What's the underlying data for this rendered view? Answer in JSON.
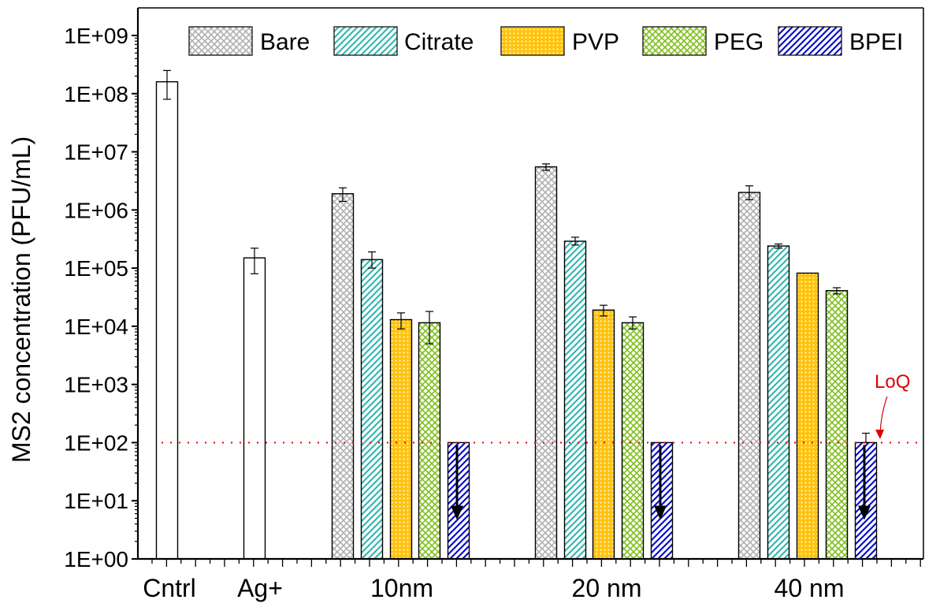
{
  "chart_data": {
    "type": "bar",
    "ylabel": "MS2 concentration (PFU/mL)",
    "xlabel": "",
    "yscale": "log",
    "ylim": [
      1,
      1000000000
    ],
    "yticks": [
      "1E+00",
      "1E+01",
      "1E+02",
      "1E+03",
      "1E+04",
      "1E+05",
      "1E+06",
      "1E+07",
      "1E+08",
      "1E+09"
    ],
    "groups": [
      "Cntrl",
      "Ag+",
      "10nm",
      "20 nm",
      "40 nm"
    ],
    "legend_position": "top",
    "legend": [
      {
        "name": "Bare",
        "pattern": "cross",
        "color": "#b0b0b0"
      },
      {
        "name": "Citrate",
        "pattern": "diag",
        "color": "#35b8b0"
      },
      {
        "name": "PVP",
        "pattern": "dots",
        "color": "#ffc20e"
      },
      {
        "name": "PEG",
        "pattern": "cross",
        "color": "#7fbf1e"
      },
      {
        "name": "BPEI",
        "pattern": "diag",
        "color": "#0a10c8"
      }
    ],
    "bars": [
      {
        "group": "Cntrl",
        "series": "Control",
        "value": 160000000,
        "err_low": 80000000,
        "err_high": 250000000,
        "pattern": "none",
        "color": "#000000"
      },
      {
        "group": "Ag+",
        "series": "Ag+",
        "value": 150000,
        "err_low": 80000,
        "err_high": 220000,
        "pattern": "none",
        "color": "#000000"
      },
      {
        "group": "10nm",
        "series": "Bare",
        "value": 1900000,
        "err_low": 1400000,
        "err_high": 2400000,
        "pattern": "cross",
        "color": "#b0b0b0"
      },
      {
        "group": "10nm",
        "series": "Citrate",
        "value": 140000,
        "err_low": 100000,
        "err_high": 190000,
        "pattern": "diag",
        "color": "#35b8b0"
      },
      {
        "group": "10nm",
        "series": "PVP",
        "value": 13000,
        "err_low": 9000,
        "err_high": 17000,
        "pattern": "dots",
        "color": "#ffc20e"
      },
      {
        "group": "10nm",
        "series": "PEG",
        "value": 11500,
        "err_low": 5000,
        "err_high": 18000,
        "pattern": "cross",
        "color": "#7fbf1e"
      },
      {
        "group": "10nm",
        "series": "BPEI",
        "value": 100,
        "below_loq": true,
        "pattern": "diag",
        "color": "#0a10c8"
      },
      {
        "group": "20 nm",
        "series": "Bare",
        "value": 5500000,
        "err_low": 4800000,
        "err_high": 6200000,
        "pattern": "cross",
        "color": "#b0b0b0"
      },
      {
        "group": "20 nm",
        "series": "Citrate",
        "value": 290000,
        "err_low": 250000,
        "err_high": 340000,
        "pattern": "diag",
        "color": "#35b8b0"
      },
      {
        "group": "20 nm",
        "series": "PVP",
        "value": 19000,
        "err_low": 15000,
        "err_high": 23000,
        "pattern": "dots",
        "color": "#ffc20e"
      },
      {
        "group": "20 nm",
        "series": "PEG",
        "value": 11500,
        "err_low": 9000,
        "err_high": 14500,
        "pattern": "cross",
        "color": "#7fbf1e"
      },
      {
        "group": "20 nm",
        "series": "BPEI",
        "value": 100,
        "below_loq": true,
        "pattern": "diag",
        "color": "#0a10c8"
      },
      {
        "group": "40 nm",
        "series": "Bare",
        "value": 2000000,
        "err_low": 1500000,
        "err_high": 2600000,
        "pattern": "cross",
        "color": "#b0b0b0"
      },
      {
        "group": "40 nm",
        "series": "Citrate",
        "value": 240000,
        "err_low": 220000,
        "err_high": 260000,
        "pattern": "diag",
        "color": "#35b8b0"
      },
      {
        "group": "40 nm",
        "series": "PVP",
        "value": 82000,
        "pattern": "dots",
        "color": "#ffc20e"
      },
      {
        "group": "40 nm",
        "series": "PEG",
        "value": 41000,
        "err_low": 36000,
        "err_high": 46000,
        "pattern": "cross",
        "color": "#7fbf1e"
      },
      {
        "group": "40 nm",
        "series": "BPEI",
        "value": 100,
        "err_high": 145,
        "below_loq": true,
        "pattern": "diag",
        "color": "#0a10c8"
      }
    ],
    "reference_line": {
      "label": "LoQ",
      "value": 100,
      "color": "#e00000",
      "style": "dotted"
    }
  }
}
